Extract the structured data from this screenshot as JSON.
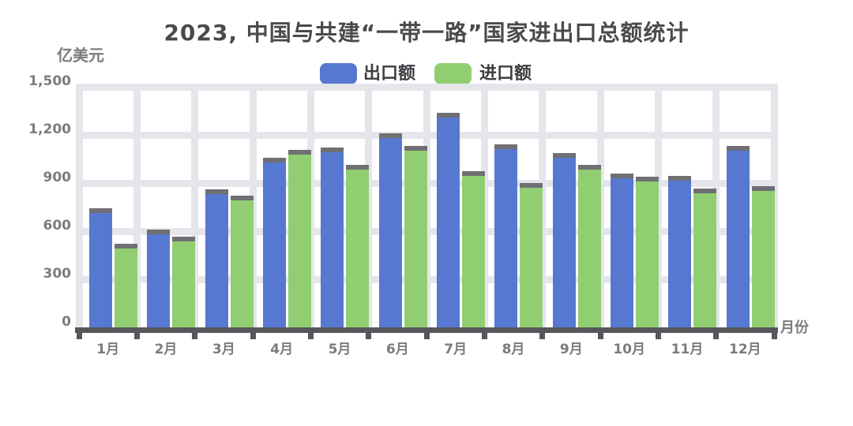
{
  "title": "2023, 中国与共建“一带一路”国家进出口总额统计",
  "y_axis": {
    "unit_label": "亿美元",
    "tick_labels_top_to_bottom": [
      "1,500",
      "1,200",
      "900",
      "600",
      "300",
      "0"
    ]
  },
  "x_axis": {
    "unit_label": "月份",
    "tick_labels": [
      "1月",
      "2月",
      "3月",
      "4月",
      "5月",
      "6月",
      "7月",
      "8月",
      "9月",
      "10月",
      "11月",
      "12月"
    ]
  },
  "legend": [
    {
      "label": "出口额",
      "color": "#5678d0"
    },
    {
      "label": "进口额",
      "color": "#91ce72"
    }
  ],
  "colors": {
    "export_bar": "#5678d0",
    "import_bar": "#91ce72",
    "bar_top_cap": "#6f6f74",
    "gridline": "#e5e6eb",
    "axis_line": "#56565b",
    "title_text": "#4a4a4e",
    "tick_text": "#7b7b80"
  },
  "chart_data": {
    "type": "bar",
    "categories": [
      "1月",
      "2月",
      "3月",
      "4月",
      "5月",
      "6月",
      "7月",
      "8月",
      "9月",
      "10月",
      "11月",
      "12月"
    ],
    "series": [
      {
        "name": "出口额",
        "color": "#5678d0",
        "values": [
          745,
          610,
          860,
          1055,
          1120,
          1210,
          1340,
          1140,
          1085,
          960,
          945,
          1130
        ]
      },
      {
        "name": "进口额",
        "color": "#91ce72",
        "values": [
          520,
          565,
          820,
          1105,
          1015,
          1130,
          975,
          900,
          1015,
          940,
          865,
          880
        ]
      }
    ],
    "title": "2023, 中国与共建“一带一路”国家进出口总额统计",
    "xlabel": "月份",
    "ylabel": "亿美元",
    "ylim": [
      0,
      1500
    ],
    "ytick_step": 300,
    "grid": true,
    "legend_position": "top-center"
  }
}
